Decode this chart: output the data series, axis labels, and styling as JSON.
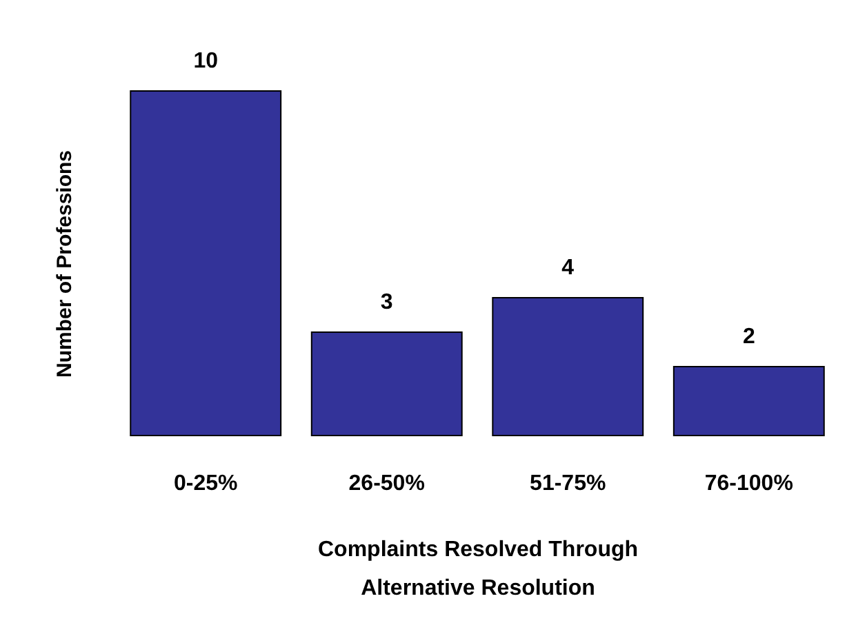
{
  "chart_data": {
    "type": "bar",
    "xlabel": "Complaints Resolved Through Alternative Resolution",
    "ylabel": "Number of Professions",
    "categories": [
      "0-25%",
      "26-50%",
      "51-75%",
      "76-100%"
    ],
    "values": [
      10,
      3,
      4,
      2
    ],
    "color": "#333399",
    "data_labels": true,
    "grid": false
  }
}
